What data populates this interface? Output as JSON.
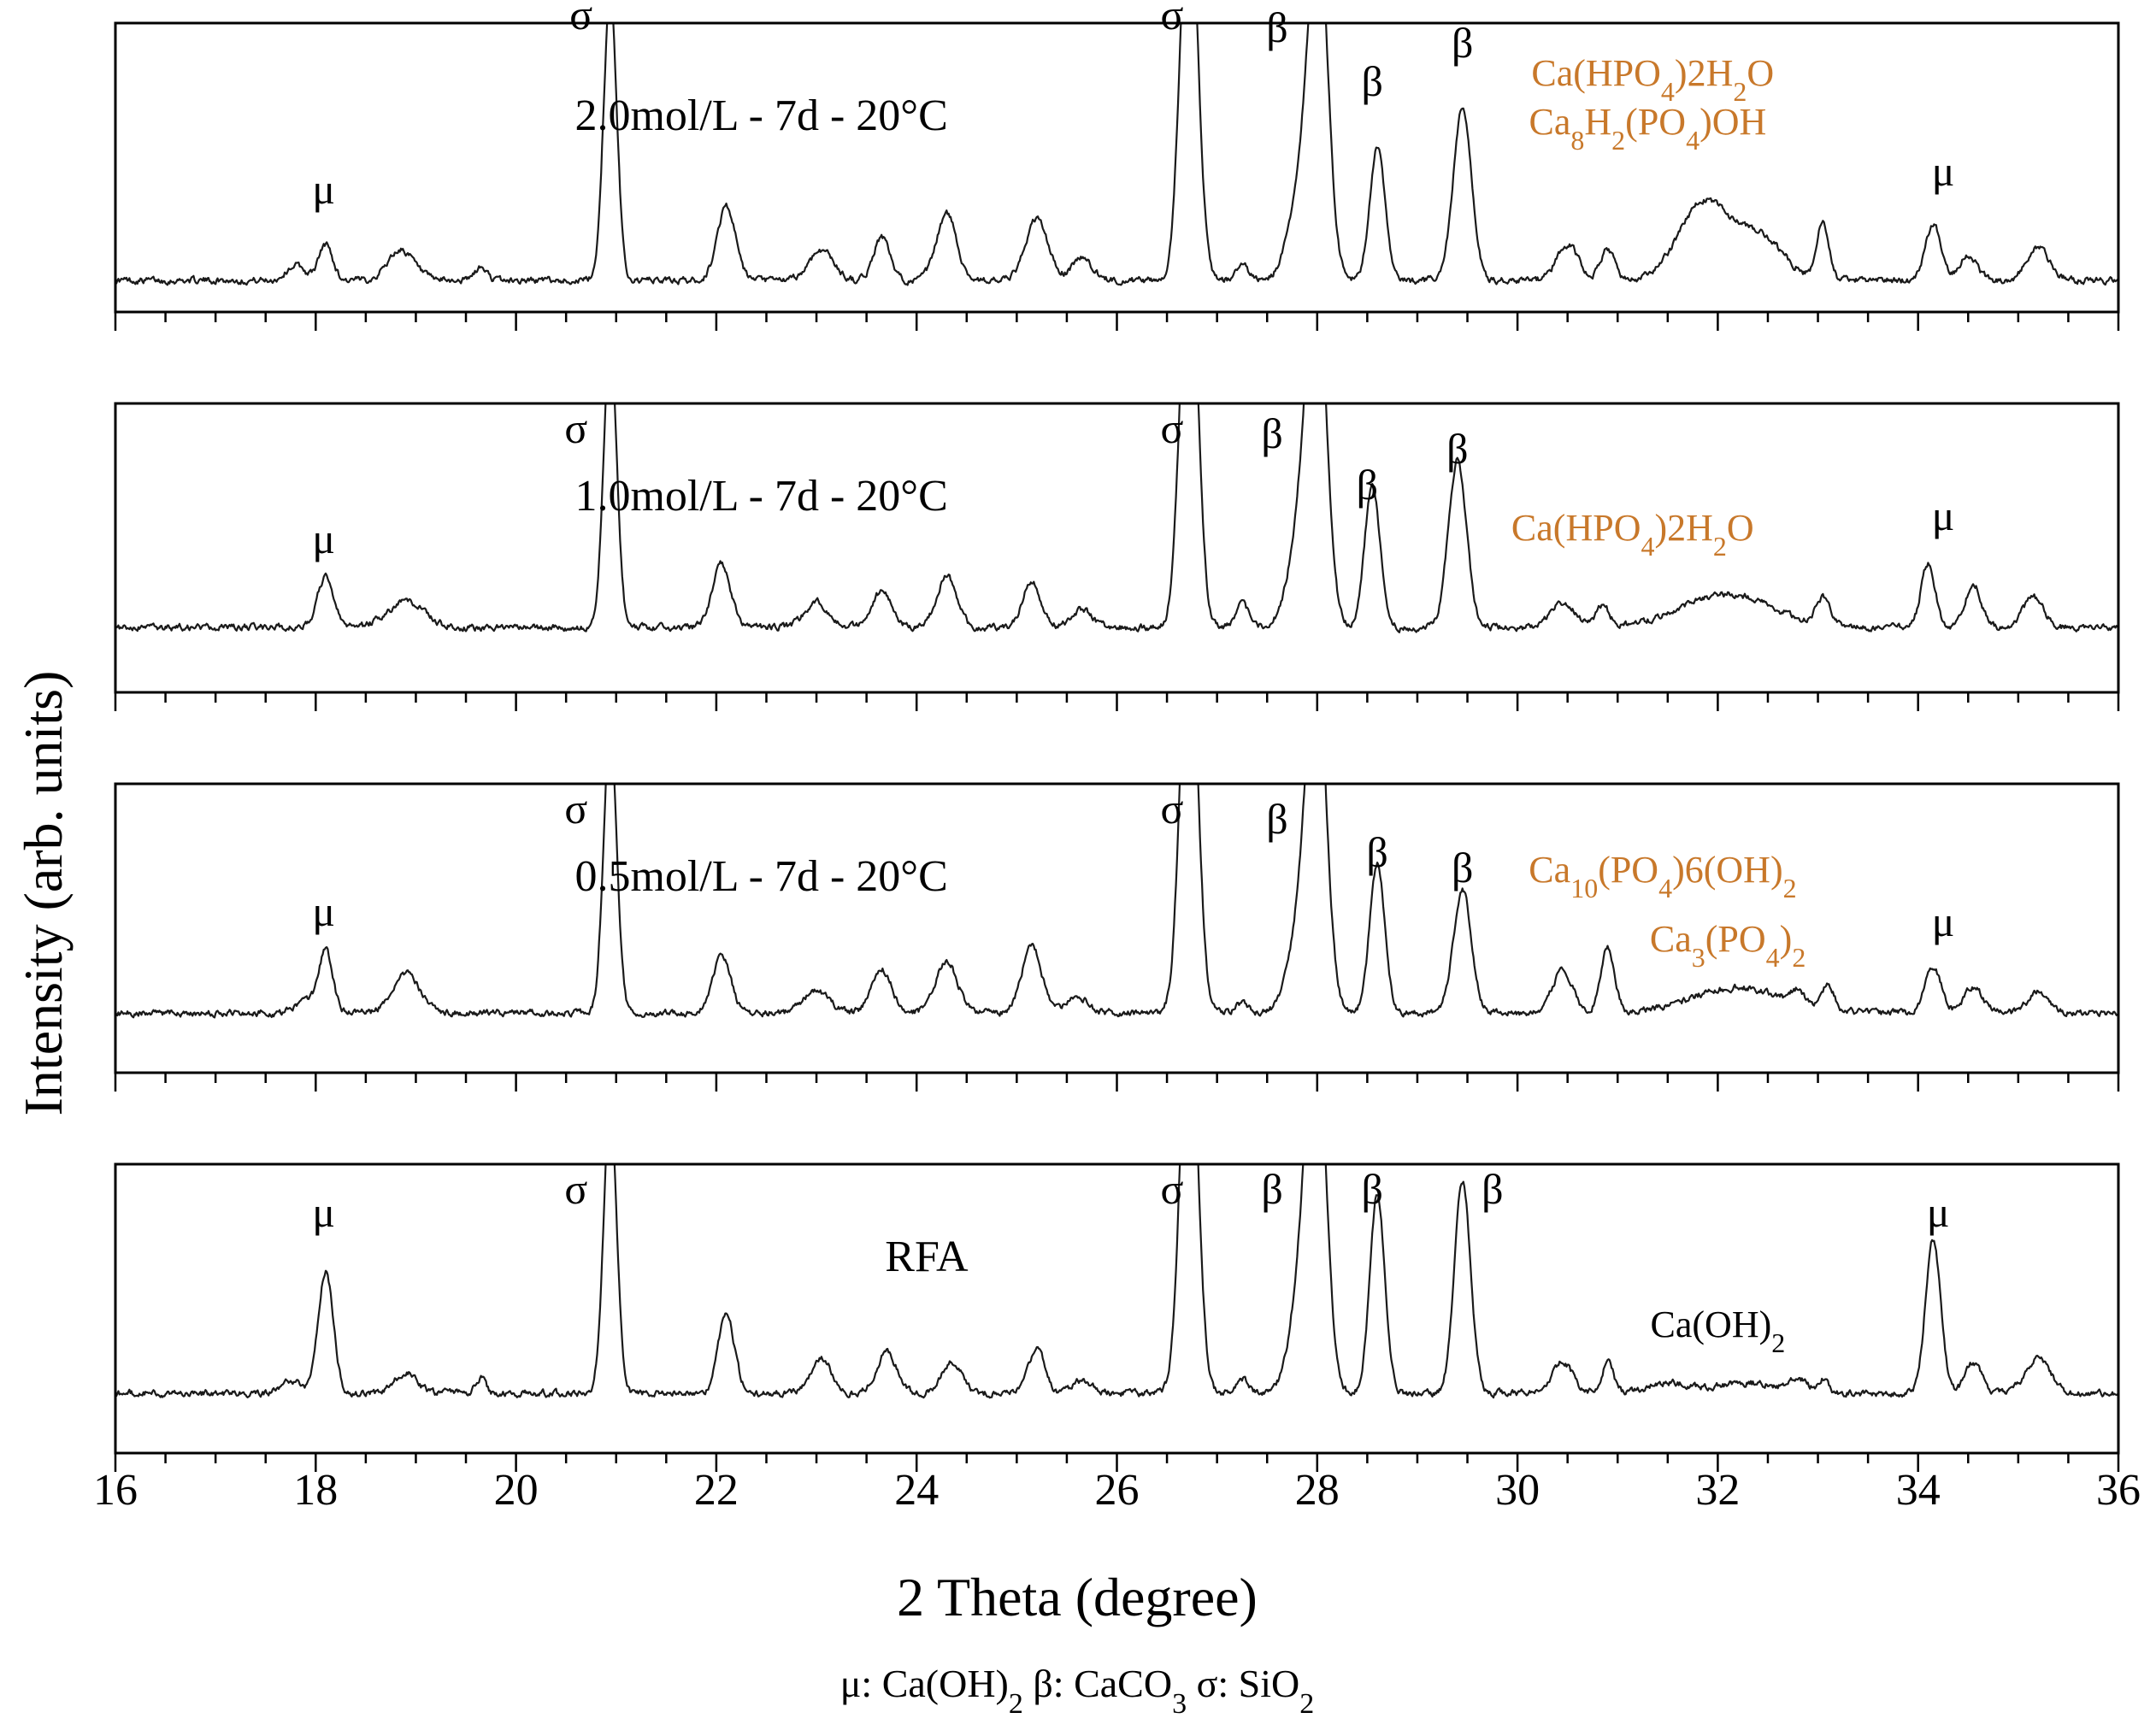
{
  "chart_data": {
    "type": "line",
    "title": "",
    "xlabel": "2 Theta (degree)",
    "ylabel": "Intensity (arb. units)",
    "xlim": [
      16,
      36
    ],
    "x_ticks": [
      "16",
      "18",
      "20",
      "22",
      "24",
      "26",
      "28",
      "30",
      "32",
      "34",
      "36"
    ],
    "ylim": [
      0,
      1
    ],
    "y_units": "arb. units (normalized, peaks at sigma ~26.7 and beta ~28.0 are clipped)",
    "legend": {
      "mu": "μ",
      "mu_phase": "Ca(OH)",
      "beta": "β",
      "beta_phase": "CaCO",
      "sigma": "σ",
      "sigma_phase": "SiO",
      "sub2": "2",
      "sub3": "3"
    },
    "panels": [
      {
        "name": "2.0mol/L - 7d - 20°C",
        "baseline": 0.03,
        "peaks": [
          {
            "x": 17.8,
            "h": 0.06,
            "w": 0.09
          },
          {
            "x": 18.1,
            "h": 0.14,
            "w": 0.07
          },
          {
            "x": 18.85,
            "h": 0.12,
            "w": 0.13
          },
          {
            "x": 19.65,
            "h": 0.05,
            "w": 0.06
          },
          {
            "x": 20.94,
            "h": 1.12,
            "w": 0.065
          },
          {
            "x": 22.1,
            "h": 0.29,
            "w": 0.09
          },
          {
            "x": 23.05,
            "h": 0.12,
            "w": 0.12
          },
          {
            "x": 23.65,
            "h": 0.17,
            "w": 0.08
          },
          {
            "x": 24.3,
            "h": 0.26,
            "w": 0.1
          },
          {
            "x": 25.2,
            "h": 0.24,
            "w": 0.11
          },
          {
            "x": 25.65,
            "h": 0.09,
            "w": 0.1
          },
          {
            "x": 26.72,
            "h": 1.6,
            "w": 0.085
          },
          {
            "x": 27.25,
            "h": 0.06,
            "w": 0.06
          },
          {
            "x": 27.9,
            "h": 0.5,
            "w": 0.14
          },
          {
            "x": 28.02,
            "h": 1.05,
            "w": 0.09
          },
          {
            "x": 28.6,
            "h": 0.52,
            "w": 0.075
          },
          {
            "x": 29.45,
            "h": 0.67,
            "w": 0.09
          },
          {
            "x": 30.5,
            "h": 0.14,
            "w": 0.11
          },
          {
            "x": 30.9,
            "h": 0.12,
            "w": 0.07
          },
          {
            "x": 31.85,
            "h": 0.3,
            "w": 0.24
          },
          {
            "x": 32.4,
            "h": 0.17,
            "w": 0.25
          },
          {
            "x": 33.05,
            "h": 0.22,
            "w": 0.06
          },
          {
            "x": 34.15,
            "h": 0.22,
            "w": 0.08
          },
          {
            "x": 34.5,
            "h": 0.1,
            "w": 0.09
          },
          {
            "x": 35.2,
            "h": 0.13,
            "w": 0.11
          }
        ],
        "peak_labels": [
          {
            "symbol": "μ",
            "x": 18.08,
            "h": 0.33
          },
          {
            "symbol": "σ",
            "x": 20.65,
            "h": 1.01
          },
          {
            "symbol": "σ",
            "x": 26.55,
            "h": 1.01
          },
          {
            "symbol": "β",
            "x": 27.6,
            "h": 0.96
          },
          {
            "symbol": "β",
            "x": 28.55,
            "h": 0.75
          },
          {
            "symbol": "β",
            "x": 29.45,
            "h": 0.9
          }
        ],
        "phases": [
          {
            "text": "Ca(HPO",
            "sub1": "4",
            "mid": ")2H",
            "sub2": "2",
            "end": "O",
            "x": 31.35,
            "h": 0.79
          },
          {
            "text": "Ca",
            "sub1": "8",
            "mid": "H",
            "sub2": "2",
            "mid2": "(PO",
            "sub3": "4",
            "end": ")OH",
            "x": 31.3,
            "h": 0.6
          }
        ],
        "extra_labels": [
          {
            "symbol": "μ",
            "x": 34.25,
            "h": 0.4,
            "color": "#000000"
          }
        ]
      },
      {
        "name": "1.0mol/L - 7d - 20°C",
        "baseline": 0.16,
        "peaks": [
          {
            "x": 18.1,
            "h": 0.2,
            "w": 0.08
          },
          {
            "x": 18.9,
            "h": 0.1,
            "w": 0.18
          },
          {
            "x": 20.94,
            "h": 1.12,
            "w": 0.065
          },
          {
            "x": 22.05,
            "h": 0.25,
            "w": 0.09
          },
          {
            "x": 23.0,
            "h": 0.1,
            "w": 0.12
          },
          {
            "x": 23.65,
            "h": 0.14,
            "w": 0.1
          },
          {
            "x": 24.3,
            "h": 0.2,
            "w": 0.1
          },
          {
            "x": 25.15,
            "h": 0.18,
            "w": 0.09
          },
          {
            "x": 25.65,
            "h": 0.07,
            "w": 0.1
          },
          {
            "x": 26.72,
            "h": 1.6,
            "w": 0.085
          },
          {
            "x": 27.25,
            "h": 0.1,
            "w": 0.06
          },
          {
            "x": 27.9,
            "h": 0.55,
            "w": 0.14
          },
          {
            "x": 28.0,
            "h": 1.05,
            "w": 0.09
          },
          {
            "x": 28.55,
            "h": 0.56,
            "w": 0.075
          },
          {
            "x": 29.4,
            "h": 0.65,
            "w": 0.09
          },
          {
            "x": 30.45,
            "h": 0.1,
            "w": 0.12
          },
          {
            "x": 30.85,
            "h": 0.08,
            "w": 0.07
          },
          {
            "x": 32.1,
            "h": 0.13,
            "w": 0.45
          },
          {
            "x": 33.05,
            "h": 0.1,
            "w": 0.07
          },
          {
            "x": 34.1,
            "h": 0.25,
            "w": 0.07
          },
          {
            "x": 34.55,
            "h": 0.17,
            "w": 0.08
          },
          {
            "x": 35.15,
            "h": 0.12,
            "w": 0.1
          }
        ],
        "peak_labels": [
          {
            "symbol": "μ",
            "x": 18.08,
            "h": 0.45
          },
          {
            "symbol": "σ",
            "x": 20.6,
            "h": 0.88
          },
          {
            "symbol": "σ",
            "x": 26.55,
            "h": 0.88
          },
          {
            "symbol": "β",
            "x": 27.55,
            "h": 0.86
          },
          {
            "symbol": "β",
            "x": 28.5,
            "h": 0.66
          },
          {
            "symbol": "β",
            "x": 29.4,
            "h": 0.8
          }
        ],
        "phases": [
          {
            "text": "Ca(HPO",
            "sub1": "4",
            "mid": ")2H",
            "sub2": "2",
            "end": "O",
            "x": 31.15,
            "h": 0.5
          }
        ],
        "extra_labels": [
          {
            "symbol": "μ",
            "x": 34.25,
            "h": 0.54,
            "color": "#000000"
          }
        ]
      },
      {
        "name": "0.5mol/L - 7d - 20°C",
        "baseline": 0.14,
        "peaks": [
          {
            "x": 17.9,
            "h": 0.04,
            "w": 0.1
          },
          {
            "x": 18.1,
            "h": 0.24,
            "w": 0.07
          },
          {
            "x": 18.9,
            "h": 0.16,
            "w": 0.13
          },
          {
            "x": 20.94,
            "h": 1.12,
            "w": 0.065
          },
          {
            "x": 22.05,
            "h": 0.22,
            "w": 0.09
          },
          {
            "x": 23.0,
            "h": 0.09,
            "w": 0.12
          },
          {
            "x": 23.65,
            "h": 0.17,
            "w": 0.1
          },
          {
            "x": 24.3,
            "h": 0.2,
            "w": 0.11
          },
          {
            "x": 25.15,
            "h": 0.26,
            "w": 0.1
          },
          {
            "x": 25.6,
            "h": 0.07,
            "w": 0.1
          },
          {
            "x": 26.72,
            "h": 1.6,
            "w": 0.085
          },
          {
            "x": 27.25,
            "h": 0.04,
            "w": 0.06
          },
          {
            "x": 27.9,
            "h": 0.5,
            "w": 0.14
          },
          {
            "x": 28.0,
            "h": 1.05,
            "w": 0.09
          },
          {
            "x": 28.6,
            "h": 0.58,
            "w": 0.075
          },
          {
            "x": 29.45,
            "h": 0.48,
            "w": 0.09
          },
          {
            "x": 30.45,
            "h": 0.17,
            "w": 0.1
          },
          {
            "x": 30.9,
            "h": 0.25,
            "w": 0.07
          },
          {
            "x": 32.2,
            "h": 0.1,
            "w": 0.45
          },
          {
            "x": 32.8,
            "h": 0.05,
            "w": 0.07
          },
          {
            "x": 33.1,
            "h": 0.1,
            "w": 0.06
          },
          {
            "x": 34.15,
            "h": 0.18,
            "w": 0.08
          },
          {
            "x": 34.55,
            "h": 0.1,
            "w": 0.09
          },
          {
            "x": 35.2,
            "h": 0.08,
            "w": 0.1
          }
        ],
        "peak_labels": [
          {
            "symbol": "μ",
            "x": 18.08,
            "h": 0.48
          },
          {
            "symbol": "σ",
            "x": 20.6,
            "h": 0.88
          },
          {
            "symbol": "σ",
            "x": 26.55,
            "h": 0.88
          },
          {
            "symbol": "β",
            "x": 27.6,
            "h": 0.84
          },
          {
            "symbol": "β",
            "x": 28.6,
            "h": 0.71
          },
          {
            "symbol": "β",
            "x": 29.45,
            "h": 0.65
          }
        ],
        "phases": [
          {
            "text": "Ca",
            "sub1": "10",
            "mid": "(PO",
            "sub2": "4",
            "end": ")6(OH)",
            "sub3": "2",
            "x": 31.45,
            "h": 0.65
          },
          {
            "text": "Ca",
            "sub1": "3",
            "mid": "(PO",
            "sub2": "4",
            "end": ")",
            "sub3": "2",
            "x": 32.1,
            "h": 0.38
          }
        ],
        "extra_labels": [
          {
            "symbol": "μ",
            "x": 34.25,
            "h": 0.44,
            "color": "#000000"
          }
        ]
      },
      {
        "name": "RFA",
        "baseline": 0.14,
        "peaks": [
          {
            "x": 17.75,
            "h": 0.05,
            "w": 0.1
          },
          {
            "x": 18.1,
            "h": 0.48,
            "w": 0.075
          },
          {
            "x": 18.9,
            "h": 0.08,
            "w": 0.11
          },
          {
            "x": 19.65,
            "h": 0.06,
            "w": 0.05
          },
          {
            "x": 20.94,
            "h": 1.12,
            "w": 0.065
          },
          {
            "x": 22.1,
            "h": 0.31,
            "w": 0.08
          },
          {
            "x": 23.05,
            "h": 0.14,
            "w": 0.1
          },
          {
            "x": 23.7,
            "h": 0.16,
            "w": 0.1
          },
          {
            "x": 24.35,
            "h": 0.12,
            "w": 0.1
          },
          {
            "x": 25.2,
            "h": 0.18,
            "w": 0.08
          },
          {
            "x": 25.65,
            "h": 0.05,
            "w": 0.1
          },
          {
            "x": 26.72,
            "h": 1.6,
            "w": 0.085
          },
          {
            "x": 27.25,
            "h": 0.06,
            "w": 0.06
          },
          {
            "x": 27.9,
            "h": 0.6,
            "w": 0.13
          },
          {
            "x": 28.0,
            "h": 1.05,
            "w": 0.09
          },
          {
            "x": 28.6,
            "h": 0.77,
            "w": 0.075
          },
          {
            "x": 29.45,
            "h": 0.83,
            "w": 0.08
          },
          {
            "x": 30.45,
            "h": 0.12,
            "w": 0.1
          },
          {
            "x": 30.9,
            "h": 0.12,
            "w": 0.06
          },
          {
            "x": 31.5,
            "h": 0.04,
            "w": 0.2
          },
          {
            "x": 32.3,
            "h": 0.04,
            "w": 0.35
          },
          {
            "x": 32.8,
            "h": 0.05,
            "w": 0.08
          },
          {
            "x": 33.05,
            "h": 0.05,
            "w": 0.05
          },
          {
            "x": 34.15,
            "h": 0.6,
            "w": 0.075
          },
          {
            "x": 34.55,
            "h": 0.12,
            "w": 0.08
          },
          {
            "x": 35.2,
            "h": 0.14,
            "w": 0.12
          }
        ],
        "peak_labels": [
          {
            "symbol": "μ",
            "x": 18.08,
            "h": 0.79
          },
          {
            "symbol": "σ",
            "x": 20.6,
            "h": 0.88
          },
          {
            "symbol": "σ",
            "x": 26.55,
            "h": 0.88
          },
          {
            "symbol": "β",
            "x": 27.55,
            "h": 0.88
          },
          {
            "symbol": "β",
            "x": 28.55,
            "h": 0.88
          },
          {
            "symbol": "β",
            "x": 29.75,
            "h": 0.88
          },
          {
            "symbol": "μ",
            "x": 34.2,
            "h": 0.79
          }
        ],
        "phases": [],
        "extra_labels": [
          {
            "text": "Ca(OH)",
            "sub1": "2",
            "x": 32.0,
            "h": 0.36,
            "color": "#000000"
          }
        ]
      }
    ]
  },
  "colors": {
    "phase": "#c8782a",
    "curve": "#1a1a1a",
    "frame": "#000000"
  }
}
